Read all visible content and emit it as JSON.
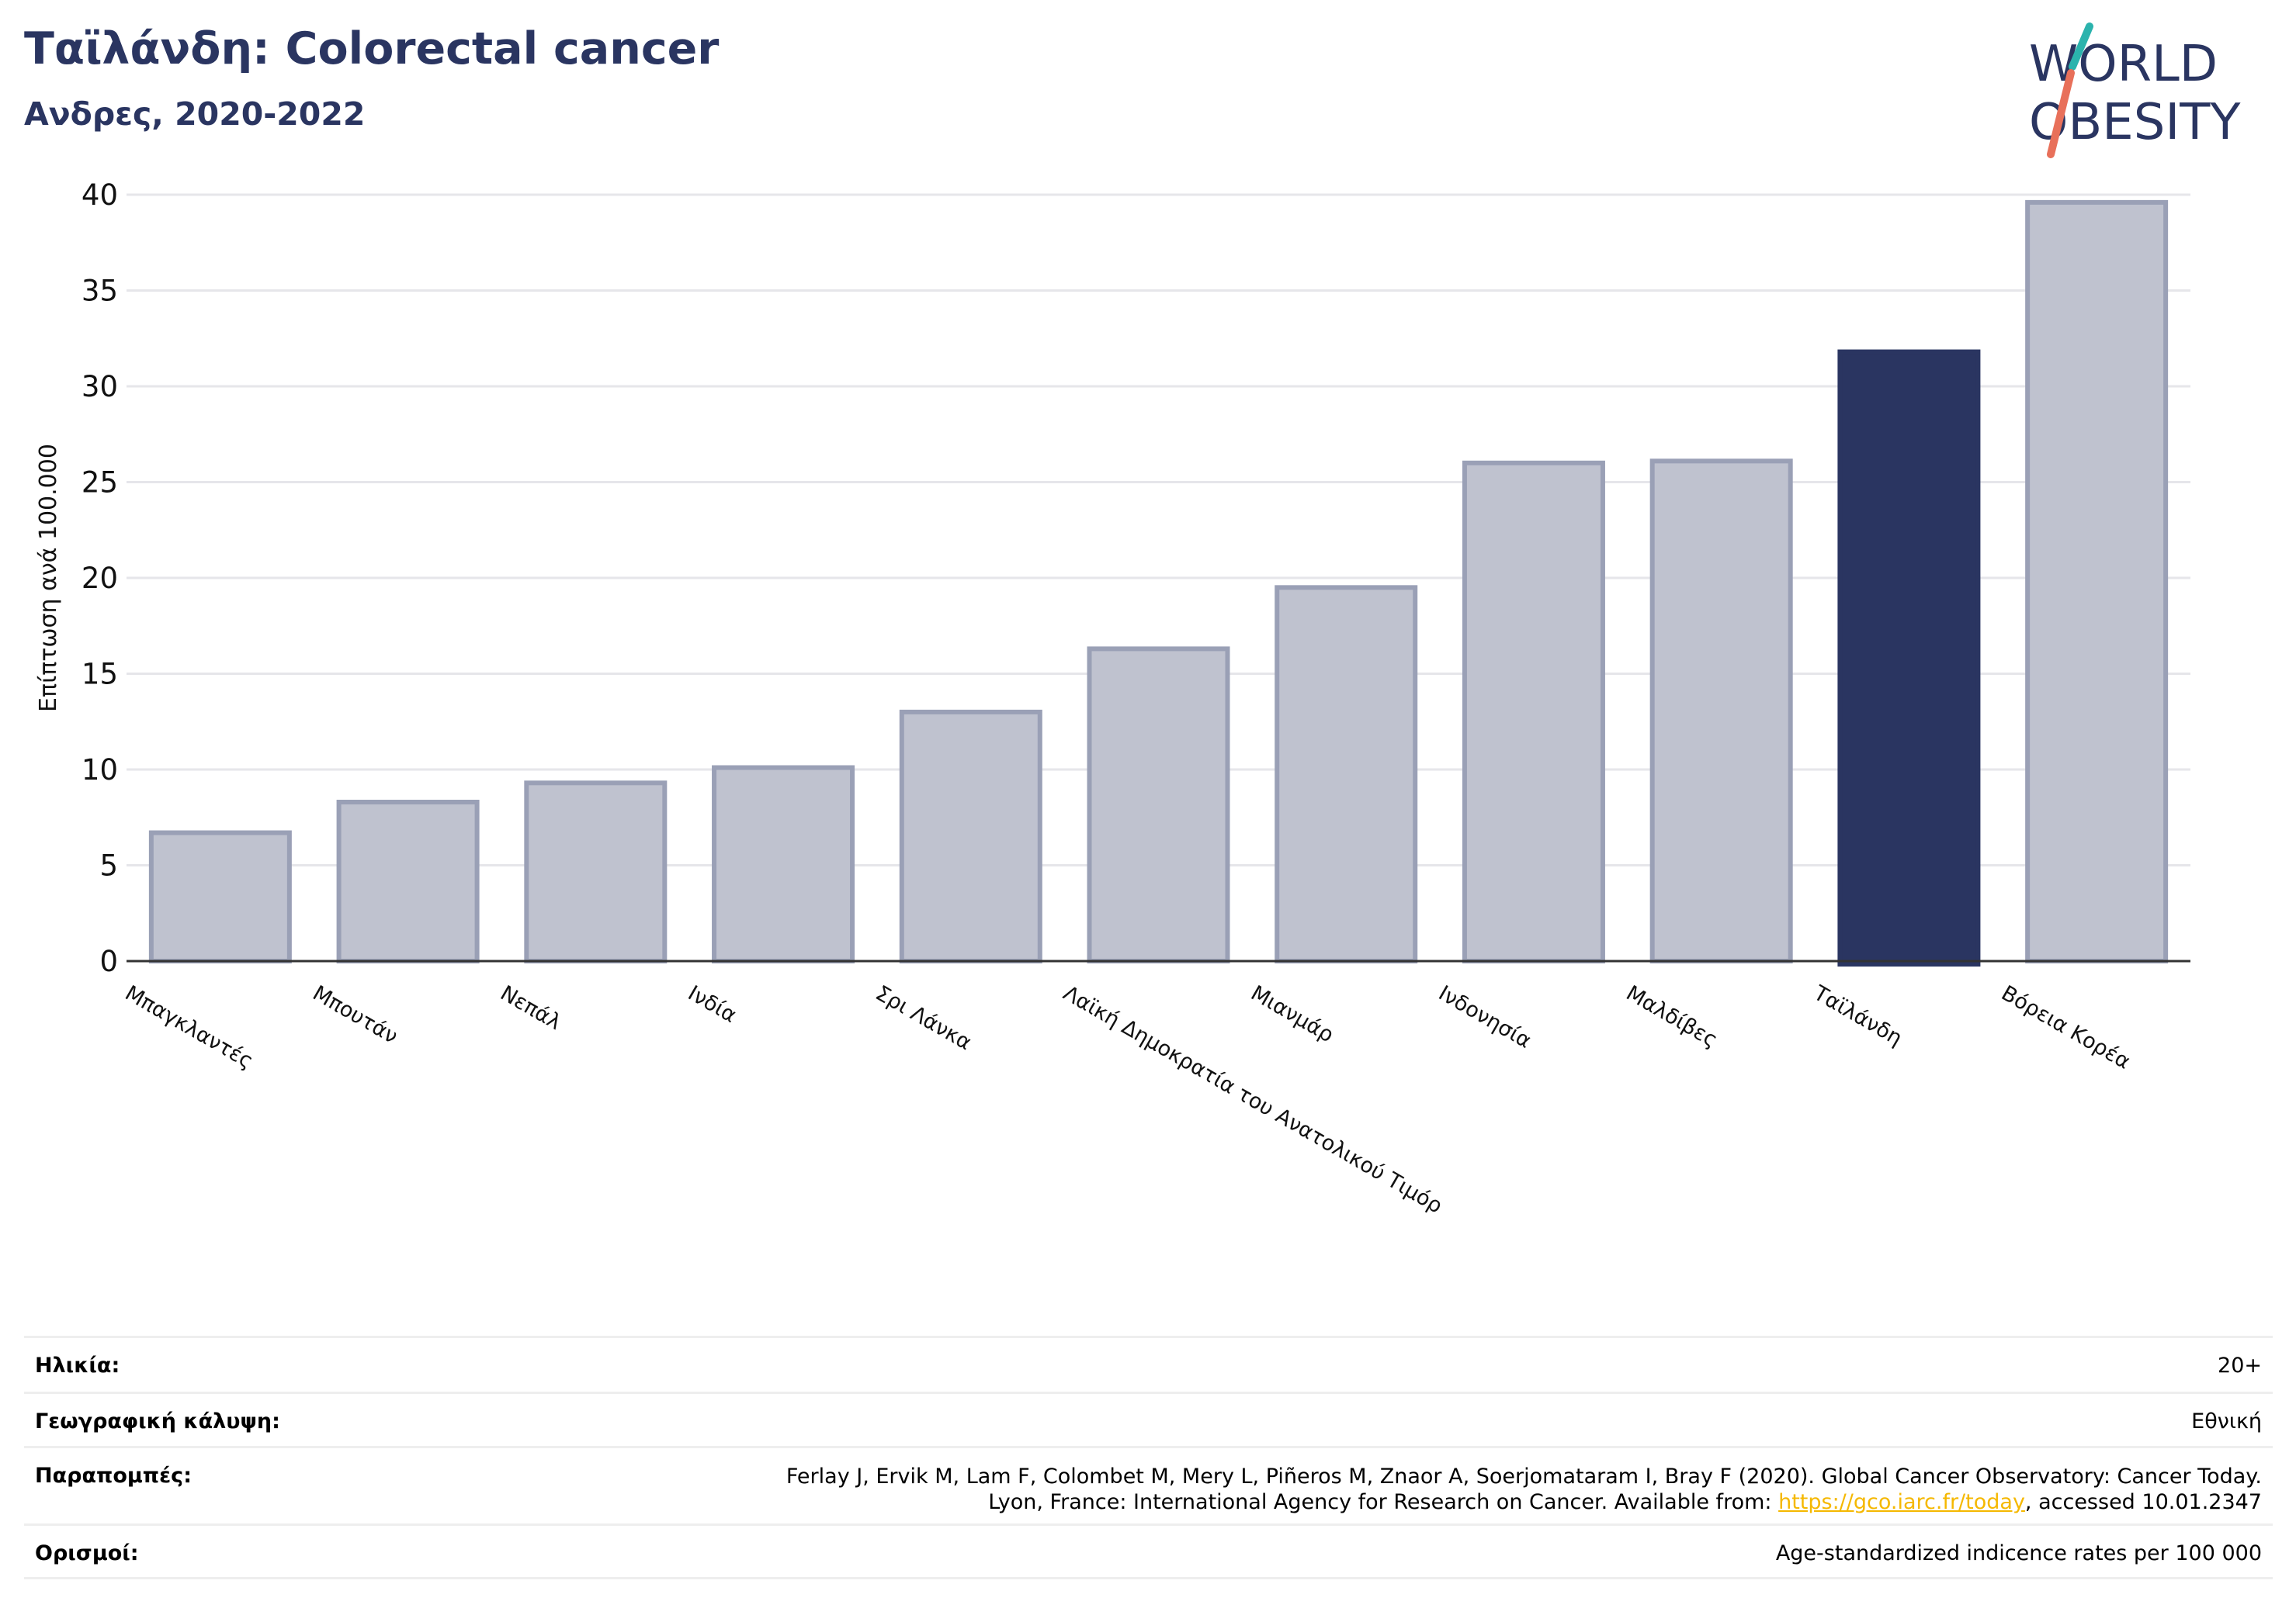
{
  "header": {
    "title": "Ταϊλάνδη: Colorectal cancer",
    "subtitle": "Ανδρες, 2020-2022"
  },
  "logo": {
    "line1": "WORLD",
    "line2": "OBESITY",
    "colors": {
      "text": "#2a3561",
      "slash_teal": "#2bb3ad",
      "slash_coral": "#e8705a"
    }
  },
  "chart_data": {
    "type": "bar",
    "ylabel": "Επίπτωση ανά 100.000",
    "ylim": [
      0,
      40
    ],
    "yticks": [
      0,
      5,
      10,
      15,
      20,
      25,
      30,
      35,
      40
    ],
    "grid": true,
    "categories": [
      "Μπαγκλαντές",
      "Μπουτάν",
      "Νεπάλ",
      "Ινδία",
      "Σρι Λάνκα",
      "Λαϊκή Δημοκρατία του Ανατολικού Τιμόρ",
      "Μιανμάρ",
      "Ινδονησία",
      "Μαλδίβες",
      "Ταϊλάνδη",
      "Βόρεια Κορέα"
    ],
    "values": [
      6.7,
      8.3,
      9.3,
      10.1,
      13.0,
      16.3,
      19.5,
      26.0,
      26.1,
      31.8,
      39.6
    ],
    "highlight": "Ταϊλάνδη",
    "colors": {
      "bar": "#bfc2cf",
      "bar_border": "#9aa0b6",
      "highlight": "#2a3561"
    }
  },
  "meta": {
    "age": {
      "label": "Ηλικία:",
      "value": "20+"
    },
    "geo": {
      "label": "Γεωγραφική κάλυψη:",
      "value": "Εθνική"
    },
    "ref": {
      "label": "Παραπομπές:",
      "line1": "Ferlay J, Ervik M, Lam F, Colombet M, Mery L, Piñeros M, Znaor A, Soerjomataram I, Bray F (2020). Global Cancer Observatory: Cancer Today.",
      "line2_prefix": "Lyon, France: International Agency for Research on Cancer. Available from: ",
      "link": "https://gco.iarc.fr/today",
      "line2_suffix": ", accessed 10.01.2347"
    },
    "def": {
      "label": "Ορισμοί:",
      "value": "Age-standardized indicence rates per 100 000"
    }
  }
}
